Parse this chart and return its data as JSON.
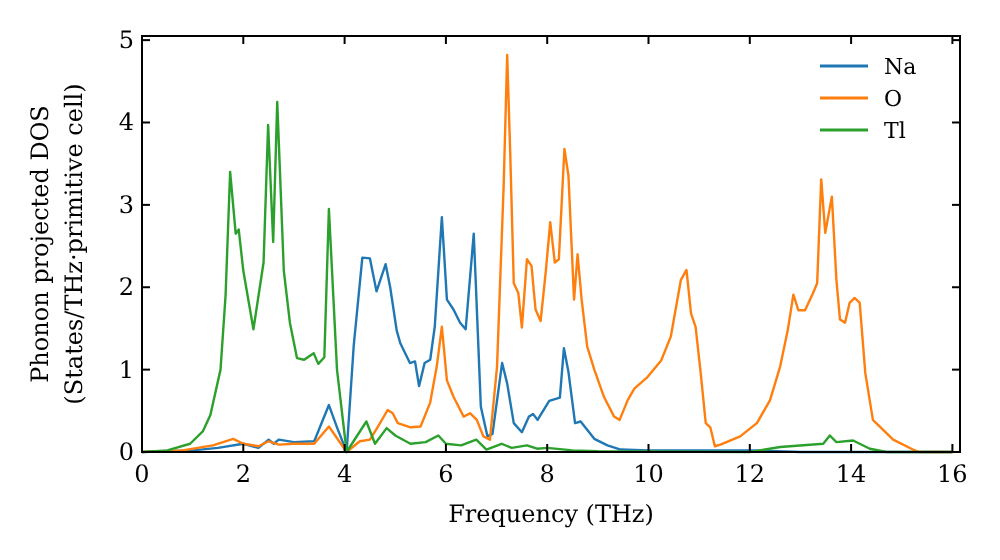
{
  "chart_data": {
    "type": "line",
    "xlabel": "Frequency (THz)",
    "ylabel": "Phonon projected DOS\n(States/THz·primitive cell)",
    "xlim": [
      0,
      16.15
    ],
    "ylim": [
      0,
      5.05
    ],
    "xticks": [
      0,
      2,
      4,
      6,
      8,
      10,
      12,
      14,
      16
    ],
    "yticks": [
      0,
      1,
      2,
      3,
      4,
      5
    ],
    "legend": "top right",
    "grid": false,
    "series": [
      {
        "name": "Na",
        "color": "#1f77b4",
        "x": [
          0,
          1,
          1.5,
          2,
          2.3,
          2.5,
          2.6,
          2.7,
          3,
          3.4,
          3.69,
          3.85,
          4.04,
          4.18,
          4.35,
          4.5,
          4.63,
          4.81,
          4.9,
          5.03,
          5.1,
          5.29,
          5.39,
          5.47,
          5.58,
          5.69,
          5.78,
          5.92,
          6.02,
          6.15,
          6.28,
          6.39,
          6.55,
          6.69,
          6.82,
          6.92,
          7.11,
          7.21,
          7.34,
          7.5,
          7.64,
          7.72,
          7.81,
          7.94,
          8.04,
          8.25,
          8.33,
          8.42,
          8.55,
          8.66,
          8.93,
          9.19,
          9.45,
          10,
          11,
          12,
          13,
          16
        ],
        "values": [
          0,
          0.02,
          0.05,
          0.1,
          0.05,
          0.15,
          0.1,
          0.15,
          0.12,
          0.13,
          0.57,
          0.3,
          0,
          1.29,
          2.36,
          2.35,
          1.95,
          2.28,
          2,
          1.47,
          1.32,
          1.08,
          1.1,
          0.8,
          1.08,
          1.12,
          1.52,
          2.85,
          1.85,
          1.73,
          1.57,
          1.49,
          2.65,
          0.55,
          0.19,
          0.22,
          1.08,
          0.83,
          0.35,
          0.24,
          0.43,
          0.46,
          0.39,
          0.52,
          0.62,
          0.66,
          1.26,
          0.97,
          0.35,
          0.37,
          0.16,
          0.08,
          0.03,
          0.02,
          0.02,
          0.02,
          0,
          0
        ]
      },
      {
        "name": "O",
        "color": "#ff7f0e",
        "x": [
          0,
          0.8,
          1.4,
          1.8,
          2,
          2.3,
          2.5,
          2.7,
          3,
          3.4,
          3.69,
          4.04,
          4.3,
          4.5,
          4.65,
          4.85,
          4.95,
          5.05,
          5.3,
          5.5,
          5.69,
          5.82,
          5.92,
          6.02,
          6.15,
          6.35,
          6.48,
          6.61,
          6.74,
          6.87,
          7.01,
          7.14,
          7.21,
          7.27,
          7.34,
          7.43,
          7.5,
          7.6,
          7.69,
          7.77,
          7.87,
          7.97,
          8.06,
          8.15,
          8.23,
          8.34,
          8.42,
          8.53,
          8.6,
          8.68,
          8.79,
          8.93,
          9.12,
          9.32,
          9.43,
          9.59,
          9.72,
          9.98,
          10.25,
          10.44,
          10.64,
          10.75,
          10.84,
          10.93,
          11.03,
          11.13,
          11.22,
          11.31,
          11.42,
          11.81,
          12.14,
          12.4,
          12.6,
          12.75,
          12.86,
          12.96,
          13.09,
          13.25,
          13.33,
          13.41,
          13.49,
          13.62,
          13.71,
          13.78,
          13.88,
          13.97,
          14.07,
          14.17,
          14.28,
          14.43,
          14.83,
          15.22,
          15.35,
          16
        ],
        "values": [
          0,
          0.02,
          0.08,
          0.16,
          0.1,
          0.07,
          0.13,
          0.09,
          0.1,
          0.1,
          0.31,
          0,
          0.13,
          0.15,
          0.3,
          0.51,
          0.47,
          0.35,
          0.3,
          0.31,
          0.6,
          1.04,
          1.52,
          0.87,
          0.67,
          0.43,
          0.47,
          0.39,
          0.19,
          0.15,
          1.04,
          3.23,
          4.82,
          3.63,
          2.05,
          1.93,
          1.51,
          2.34,
          2.26,
          1.73,
          1.59,
          2.18,
          2.79,
          2.3,
          2.34,
          3.68,
          3.35,
          1.85,
          2.4,
          1.85,
          1.28,
          1,
          0.67,
          0.43,
          0.39,
          0.63,
          0.77,
          0.91,
          1.11,
          1.4,
          2.09,
          2.21,
          1.68,
          1.52,
          0.96,
          0.35,
          0.3,
          0.07,
          0.09,
          0.19,
          0.35,
          0.63,
          1.04,
          1.48,
          1.91,
          1.72,
          1.72,
          1.93,
          2.05,
          3.31,
          2.66,
          3.1,
          2.09,
          1.61,
          1.57,
          1.81,
          1.87,
          1.81,
          0.96,
          0.39,
          0.15,
          0.03,
          0,
          0
        ]
      },
      {
        "name": "Tl",
        "color": "#2ca02c",
        "x": [
          0,
          0.5,
          0.95,
          1.2,
          1.35,
          1.55,
          1.65,
          1.74,
          1.85,
          1.91,
          2,
          2.2,
          2.4,
          2.49,
          2.59,
          2.67,
          2.8,
          2.92,
          3.06,
          3.2,
          3.39,
          3.48,
          3.6,
          3.69,
          3.85,
          4.04,
          4.25,
          4.43,
          4.6,
          4.83,
          5,
          5.3,
          5.6,
          5.85,
          6,
          6.3,
          6.6,
          6.8,
          7.1,
          7.3,
          7.6,
          7.8,
          8,
          8.5,
          9,
          12,
          12.6,
          13.45,
          13.58,
          13.71,
          14.04,
          14.37,
          14.7,
          16
        ],
        "values": [
          0,
          0.02,
          0.1,
          0.25,
          0.45,
          1,
          1.9,
          3.4,
          2.65,
          2.7,
          2.2,
          1.49,
          2.3,
          3.97,
          2.55,
          4.25,
          2.2,
          1.57,
          1.14,
          1.12,
          1.2,
          1.07,
          1.15,
          2.95,
          1,
          0,
          0.2,
          0.37,
          0.1,
          0.29,
          0.2,
          0.1,
          0.12,
          0.2,
          0.1,
          0.08,
          0.15,
          0.03,
          0.1,
          0.05,
          0.08,
          0.04,
          0.05,
          0.02,
          0.01,
          0,
          0.06,
          0.1,
          0.2,
          0.12,
          0.14,
          0.04,
          0,
          0
        ]
      }
    ]
  }
}
